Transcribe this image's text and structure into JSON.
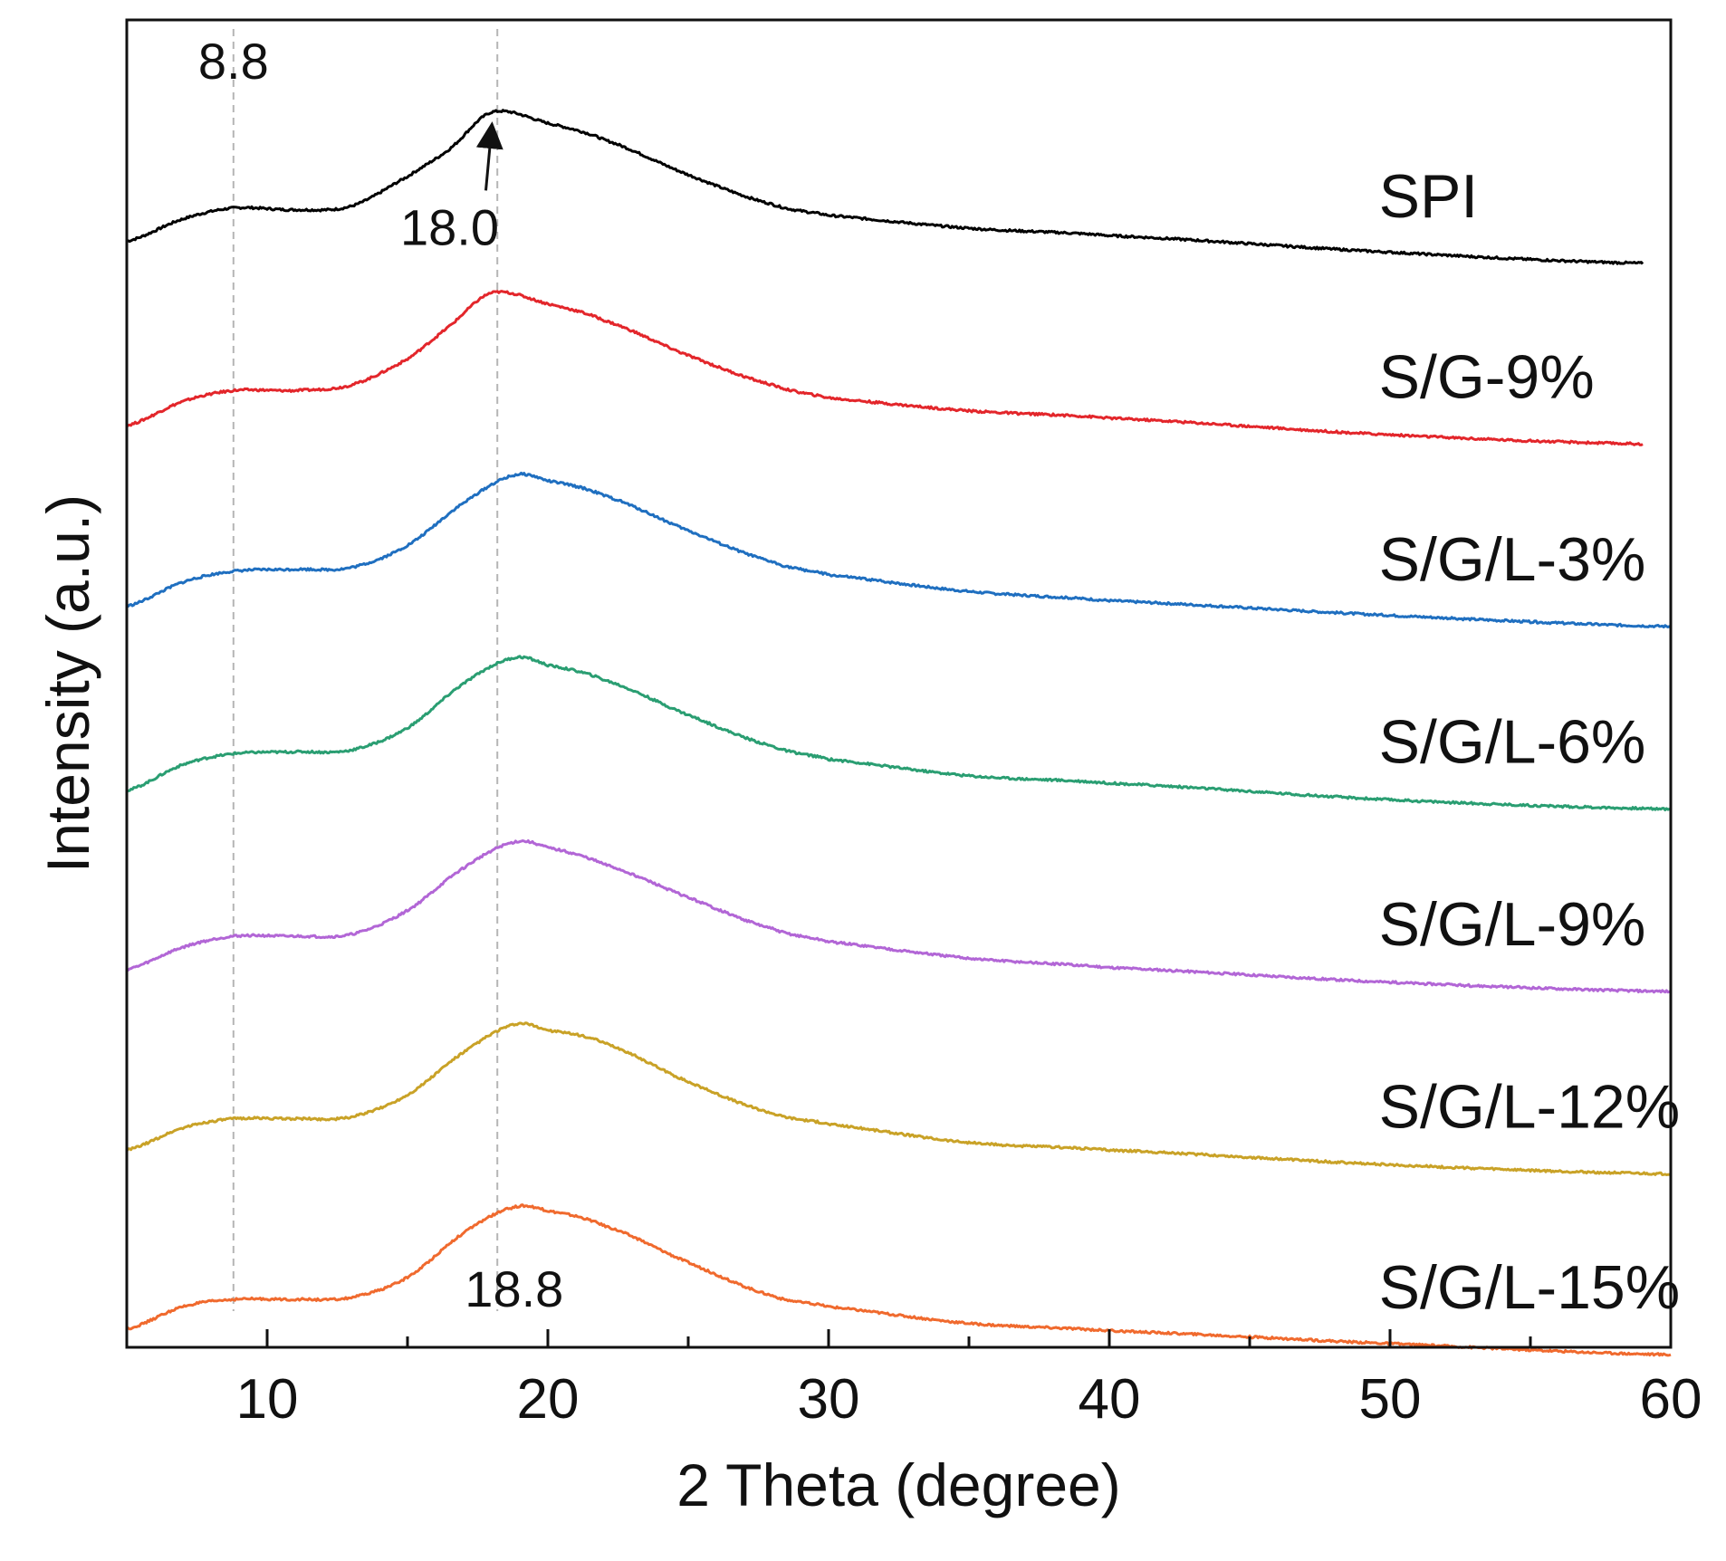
{
  "chart_data": {
    "type": "line",
    "title": "",
    "xlabel": "2 Theta (degree)",
    "ylabel": "Intensity (a.u.)",
    "xlim": [
      5,
      60
    ],
    "ylim": [
      0,
      7.2
    ],
    "x_ticks": [
      10,
      20,
      30,
      40,
      50,
      60
    ],
    "x_tick_labels": [
      "10",
      "20",
      "30",
      "40",
      "50",
      "60"
    ],
    "y_ticks_shown": false,
    "grid": false,
    "legend": "labels placed beside each curve (right side)",
    "reference_lines_x": [
      8.8,
      18.2
    ],
    "annotations": [
      {
        "text": "8.8",
        "x": 8.8,
        "y": 6.88
      },
      {
        "text": "18.0",
        "x": 16.5,
        "y": 5.98,
        "arrow_to_x": 18.0,
        "arrow_to_y": 6.62
      },
      {
        "text": "18.8",
        "x": 18.8,
        "y": 0.22
      }
    ],
    "series": [
      {
        "name": "SPI",
        "color": "#000000",
        "offset": 6.0,
        "x_end": 59,
        "x": [
          5,
          7,
          8.8,
          11,
          13,
          15,
          16.5,
          18.0,
          20,
          22,
          25,
          28,
          30,
          35,
          40,
          50,
          59
        ],
        "y": [
          6.0,
          6.12,
          6.18,
          6.17,
          6.19,
          6.35,
          6.5,
          6.7,
          6.64,
          6.55,
          6.36,
          6.2,
          6.14,
          6.07,
          6.03,
          5.94,
          5.88
        ]
      },
      {
        "name": "S/G-9%",
        "color": "#e3262b",
        "offset": 5.0,
        "x_end": 59,
        "x": [
          5,
          7,
          8.8,
          11,
          13,
          15,
          16.5,
          18.0,
          20,
          22,
          25,
          28,
          30,
          35,
          40,
          50,
          59
        ],
        "y": [
          5.0,
          5.13,
          5.19,
          5.19,
          5.22,
          5.36,
          5.54,
          5.72,
          5.66,
          5.57,
          5.38,
          5.22,
          5.15,
          5.08,
          5.04,
          4.95,
          4.9
        ]
      },
      {
        "name": "S/G/L-3%",
        "color": "#1f6fc0",
        "offset": 4.0,
        "x_end": 60,
        "x": [
          5,
          7,
          8.8,
          11,
          13,
          15,
          17,
          18.8,
          20,
          22,
          25,
          28,
          30,
          35,
          40,
          50,
          60
        ],
        "y": [
          4.02,
          4.15,
          4.21,
          4.22,
          4.23,
          4.35,
          4.58,
          4.73,
          4.7,
          4.62,
          4.43,
          4.26,
          4.19,
          4.1,
          4.05,
          3.97,
          3.91
        ]
      },
      {
        "name": "S/G/L-6%",
        "color": "#2a9e72",
        "offset": 3.0,
        "x_end": 60,
        "x": [
          5,
          7,
          8.8,
          11,
          13,
          15,
          17,
          18.8,
          20,
          22,
          25,
          28,
          30,
          35,
          40,
          50,
          60
        ],
        "y": [
          3.02,
          3.16,
          3.22,
          3.23,
          3.24,
          3.36,
          3.6,
          3.74,
          3.7,
          3.62,
          3.43,
          3.26,
          3.19,
          3.1,
          3.06,
          2.97,
          2.92
        ]
      },
      {
        "name": "S/G/L-9%",
        "color": "#b266d6",
        "offset": 2.0,
        "x_end": 60,
        "x": [
          5,
          7,
          8.8,
          11,
          13,
          15,
          17,
          18.8,
          20,
          22,
          25,
          28,
          30,
          35,
          40,
          50,
          60
        ],
        "y": [
          2.05,
          2.17,
          2.23,
          2.23,
          2.24,
          2.37,
          2.6,
          2.74,
          2.71,
          2.62,
          2.44,
          2.27,
          2.2,
          2.11,
          2.06,
          1.98,
          1.93
        ]
      },
      {
        "name": "S/G/L-12%",
        "color": "#c9a227",
        "offset": 1.0,
        "x_end": 60,
        "x": [
          5,
          7,
          8.8,
          11,
          13,
          15,
          17,
          18.8,
          20,
          22,
          25,
          28,
          30,
          35,
          40,
          50,
          60
        ],
        "y": [
          1.07,
          1.19,
          1.24,
          1.24,
          1.25,
          1.37,
          1.6,
          1.75,
          1.72,
          1.65,
          1.44,
          1.27,
          1.21,
          1.11,
          1.07,
          0.99,
          0.94
        ]
      },
      {
        "name": "S/G/L-15%",
        "color": "#f06a2e",
        "offset": 0.0,
        "x_end": 60,
        "x": [
          5,
          7,
          8.8,
          11,
          13,
          15,
          17,
          18.8,
          20,
          22,
          25,
          28,
          30,
          35,
          40,
          50,
          60
        ],
        "y": [
          0.1,
          0.22,
          0.26,
          0.26,
          0.27,
          0.38,
          0.62,
          0.76,
          0.74,
          0.66,
          0.46,
          0.28,
          0.22,
          0.13,
          0.09,
          0.02,
          -0.04
        ]
      }
    ]
  }
}
